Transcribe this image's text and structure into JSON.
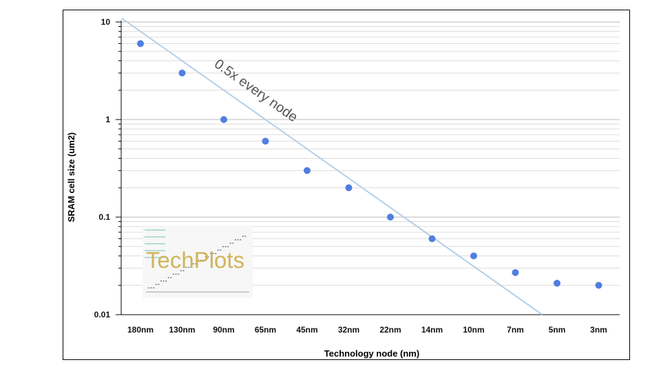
{
  "chart_data": {
    "type": "scatter",
    "title": "",
    "xlabel": "Technology node (nm)",
    "ylabel": "SRAM cell size (um2)",
    "categories": [
      "180nm",
      "130nm",
      "90nm",
      "65nm",
      "45nm",
      "32nm",
      "22nm",
      "14nm",
      "10nm",
      "7nm",
      "5nm",
      "3nm"
    ],
    "series": [
      {
        "values": [
          6,
          3,
          1,
          0.6,
          0.3,
          0.2,
          0.1,
          0.06,
          0.04,
          0.027,
          0.021,
          0.02
        ],
        "color": "#4f7fe0"
      }
    ],
    "trendline": {
      "label": "0.5x every node",
      "start_value": 8,
      "ratio": 0.5,
      "color": "#b4cfe6"
    },
    "y_scale": "log",
    "ylim": [
      0.01,
      10
    ],
    "y_ticks": [
      "10",
      "1",
      "0.1",
      "0.01"
    ],
    "y_tick_values": [
      10,
      1,
      0.1,
      0.01
    ],
    "grid": true,
    "legend": "none",
    "watermark": "TechPlots"
  }
}
